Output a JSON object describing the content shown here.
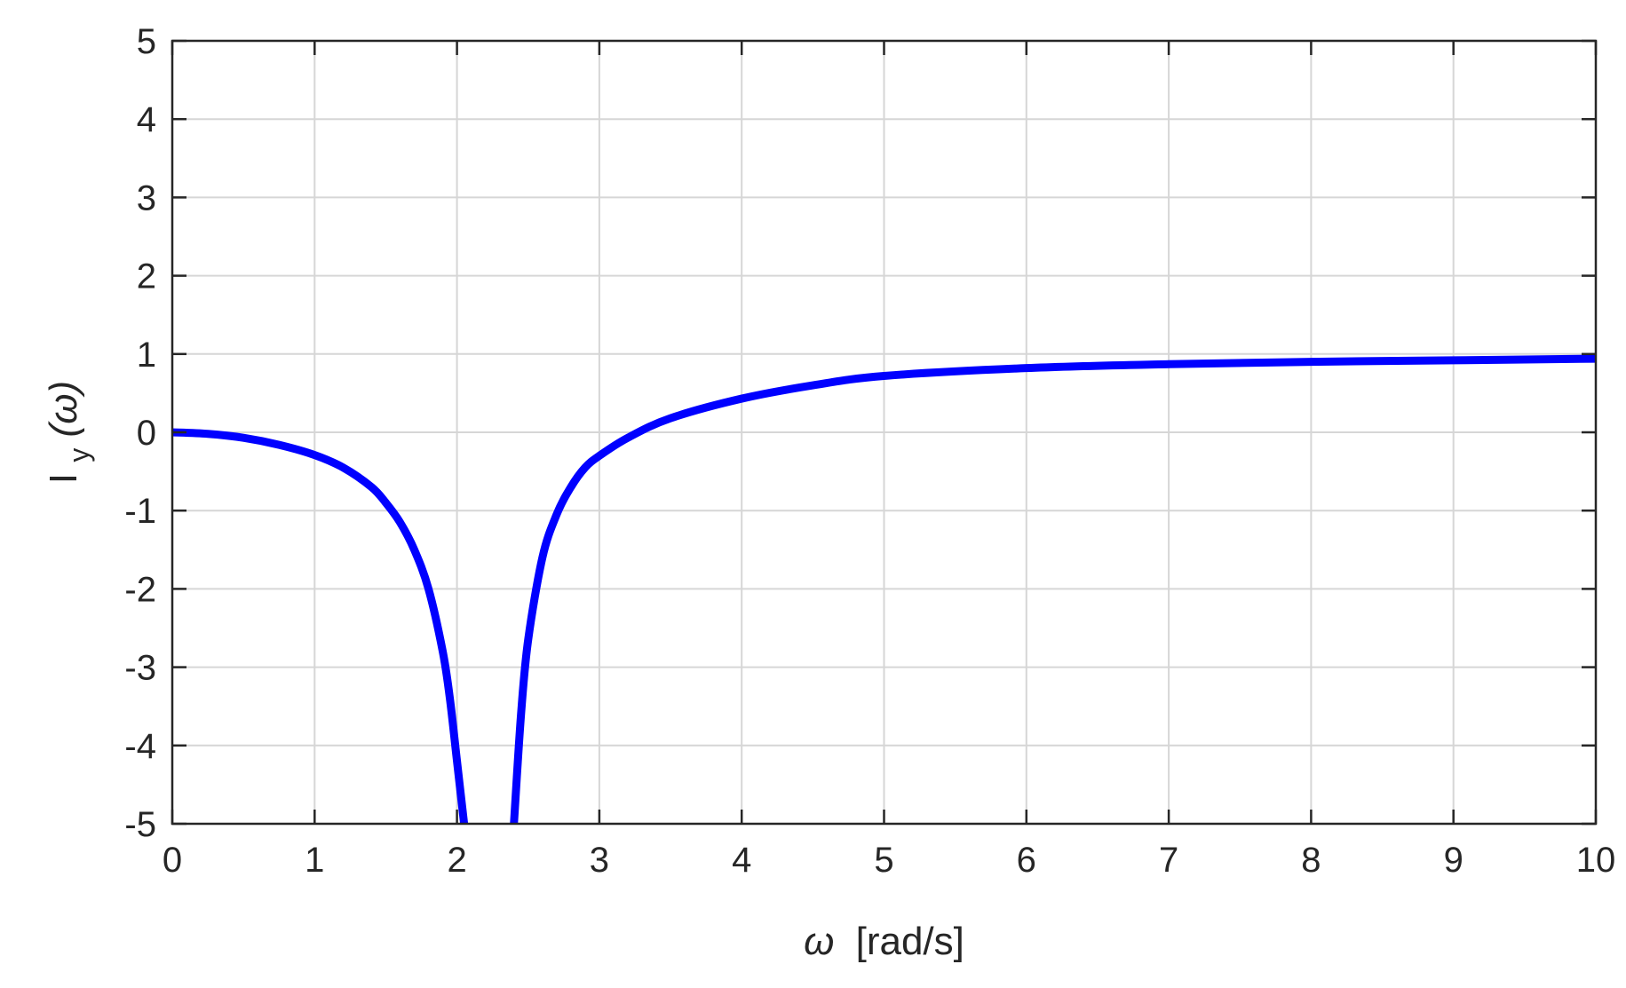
{
  "chart_data": {
    "type": "line",
    "title": "",
    "xlabel_symbol": "ω",
    "xlabel_unit": "[rad/s]",
    "ylabel_main": "I",
    "ylabel_sub": "y",
    "ylabel_arg": "(ω)",
    "xlim": [
      0,
      10
    ],
    "ylim": [
      -5,
      5
    ],
    "xticks": [
      0,
      1,
      2,
      3,
      4,
      5,
      6,
      7,
      8,
      9,
      10
    ],
    "yticks": [
      -5,
      -4,
      -3,
      -2,
      -1,
      0,
      1,
      2,
      3,
      4,
      5
    ],
    "xtick_labels": [
      "0",
      "1",
      "2",
      "3",
      "4",
      "5",
      "6",
      "7",
      "8",
      "9",
      "10"
    ],
    "ytick_labels": [
      "-5",
      "-4",
      "-3",
      "-2",
      "-1",
      "0",
      "1",
      "2",
      "3",
      "4",
      "5"
    ],
    "grid": true,
    "legend": "none",
    "series": [
      {
        "color": "#0000ff",
        "segments": [
          {
            "x": [
              0,
              0.25,
              0.5,
              0.75,
              1.0,
              1.2,
              1.4,
              1.5,
              1.6,
              1.7,
              1.8,
              1.9,
              1.95,
              2.0,
              2.05
            ],
            "y": [
              0,
              -0.02,
              -0.07,
              -0.16,
              -0.29,
              -0.45,
              -0.7,
              -0.9,
              -1.15,
              -1.5,
              -2.0,
              -2.8,
              -3.4,
              -4.2,
              -5.0
            ]
          },
          {
            "x": [
              2.4,
              2.45,
              2.5,
              2.6,
              2.7,
              2.8,
              2.9,
              3.0,
              3.2,
              3.5,
              4.0,
              4.5,
              5.0,
              6.0,
              7.0,
              8.0,
              9.0,
              10.0
            ],
            "y": [
              -5.0,
              -3.6,
              -2.65,
              -1.6,
              -1.05,
              -0.7,
              -0.45,
              -0.3,
              -0.07,
              0.18,
              0.43,
              0.6,
              0.72,
              0.82,
              0.87,
              0.9,
              0.92,
              0.94
            ]
          }
        ]
      }
    ]
  }
}
